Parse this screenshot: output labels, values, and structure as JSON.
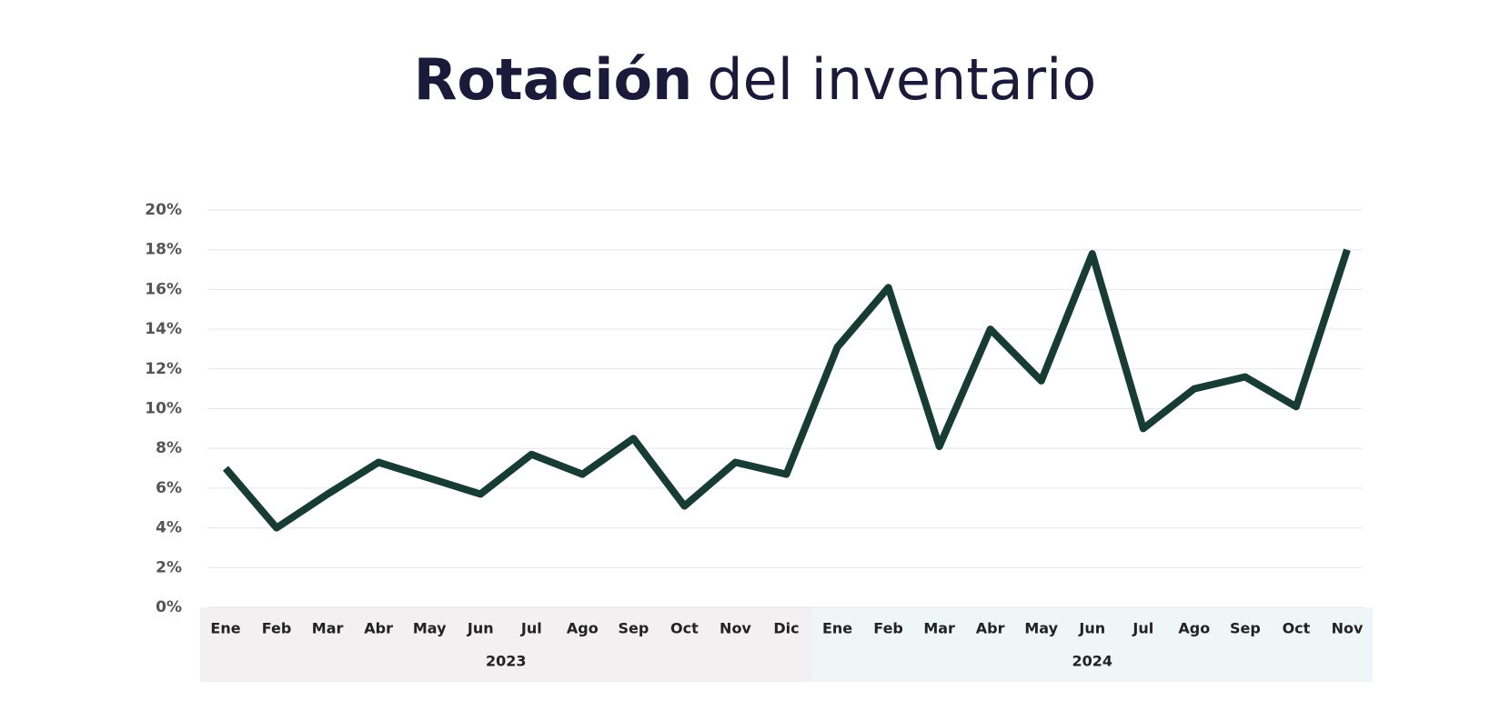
{
  "chart_data": {
    "type": "line",
    "title": {
      "bold": "Rotación",
      "regular": "del inventario"
    },
    "groups": [
      {
        "label": "2023",
        "color": "#f2f0f0",
        "categories": [
          "Ene",
          "Feb",
          "Mar",
          "Abr",
          "May",
          "Jun",
          "Jul",
          "Ago",
          "Sep",
          "Oct",
          "Nov",
          "Dic"
        ]
      },
      {
        "label": "2024",
        "color": "#eef6f8",
        "categories": [
          "Ene",
          "Feb",
          "Mar",
          "Abr",
          "May",
          "Jun",
          "Jul",
          "Ago",
          "Sep",
          "Oct",
          "Nov"
        ]
      }
    ],
    "series": [
      {
        "color": "#173d33",
        "values": [
          7,
          4,
          5.7,
          7.3,
          6.5,
          5.7,
          7.7,
          6.7,
          8.5,
          5.1,
          7.3,
          6.7,
          13.1,
          16.1,
          8.1,
          14,
          11.4,
          17.8,
          9,
          11,
          11.6,
          10.1,
          18
        ]
      }
    ],
    "ylim": [
      0,
      20
    ],
    "yticks": [
      {
        "value": 0,
        "label": "0%"
      },
      {
        "value": 2,
        "label": "2%"
      },
      {
        "value": 4,
        "label": "4%"
      },
      {
        "value": 6,
        "label": "6%"
      },
      {
        "value": 8,
        "label": "8%"
      },
      {
        "value": 10,
        "label": "10%"
      },
      {
        "value": 12,
        "label": "12%"
      },
      {
        "value": 14,
        "label": "14%"
      },
      {
        "value": 16,
        "label": "16%"
      },
      {
        "value": 18,
        "label": "18%"
      },
      {
        "value": 20,
        "label": "20%"
      }
    ],
    "grid": true
  }
}
